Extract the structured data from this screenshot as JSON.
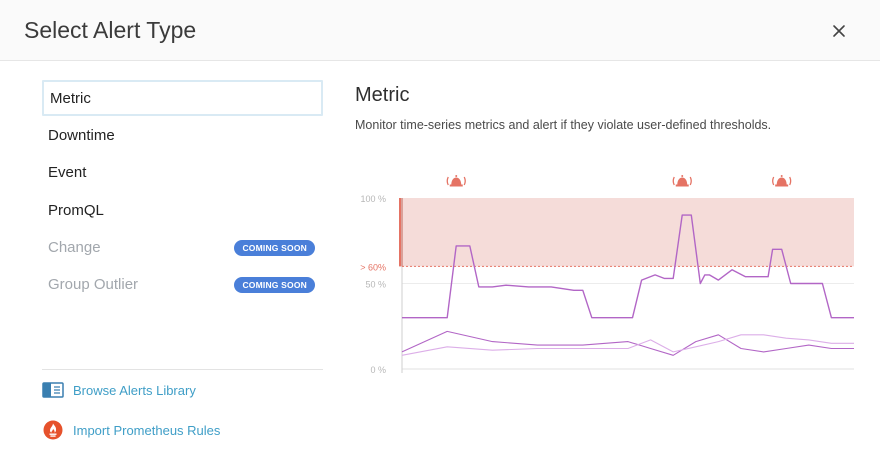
{
  "dialog": {
    "title": "Select Alert Type"
  },
  "alert_types": [
    {
      "label": "Metric",
      "selected": true,
      "disabled": false,
      "badge": ""
    },
    {
      "label": "Downtime",
      "selected": false,
      "disabled": false,
      "badge": ""
    },
    {
      "label": "Event",
      "selected": false,
      "disabled": false,
      "badge": ""
    },
    {
      "label": "PromQL",
      "selected": false,
      "disabled": false,
      "badge": ""
    },
    {
      "label": "Change",
      "selected": false,
      "disabled": true,
      "badge": "COMING SOON"
    },
    {
      "label": "Group Outlier",
      "selected": false,
      "disabled": true,
      "badge": "COMING SOON"
    }
  ],
  "links": {
    "browse_library": "Browse Alerts Library",
    "import_prometheus": "Import Prometheus Rules"
  },
  "detail": {
    "title": "Metric",
    "description": "Monitor time-series metrics and alert if they violate user-defined thresholds."
  },
  "colors": {
    "accent_link": "#3f9ec7",
    "badge": "#4a7fd9",
    "threshold": "#e57364",
    "alert_region": "#f5dcd9",
    "series_main": "#b266c6",
    "series_light": "#dcaee8",
    "prometheus": "#e6522c"
  },
  "chart_data": {
    "type": "line",
    "y_tick_labels": [
      "100 %",
      "50 %",
      "0 %"
    ],
    "threshold_label": "> 60%",
    "threshold": 60,
    "ylim": [
      0,
      100
    ],
    "xlim": [
      0,
      100
    ],
    "alert_icon": "alarm-bell-icon",
    "series": [
      {
        "x": [
          0,
          8,
          10,
          12,
          15,
          17,
          20,
          23,
          28,
          33,
          38,
          40,
          42,
          44,
          46,
          49,
          51,
          53,
          56,
          58,
          60,
          62,
          64,
          66,
          67,
          68,
          70,
          73,
          76,
          79,
          81,
          82,
          84,
          86,
          88,
          91,
          93,
          95,
          97,
          100
        ],
        "values": [
          30,
          30,
          30,
          72,
          72,
          48,
          48,
          49,
          48,
          48,
          46,
          46,
          30,
          30,
          30,
          30,
          30,
          52,
          55,
          53,
          53,
          90,
          90,
          50,
          55,
          55,
          52,
          58,
          54,
          54,
          54,
          70,
          70,
          50,
          50,
          50,
          50,
          30,
          30,
          30
        ]
      },
      {
        "x": [
          0,
          10,
          20,
          30,
          40,
          50,
          55,
          60,
          65,
          70,
          75,
          80,
          85,
          90,
          95,
          100
        ],
        "values": [
          10,
          22,
          16,
          14,
          14,
          16,
          12,
          8,
          16,
          20,
          12,
          10,
          12,
          14,
          12,
          12
        ]
      },
      {
        "x": [
          0,
          10,
          20,
          30,
          40,
          50,
          55,
          60,
          65,
          70,
          75,
          80,
          85,
          90,
          95,
          100
        ],
        "values": [
          8,
          13,
          11,
          12,
          12,
          12,
          17,
          10,
          13,
          16,
          20,
          20,
          18,
          17,
          15,
          15
        ]
      }
    ],
    "alerts_at_x": [
      12,
      62,
      84
    ]
  }
}
